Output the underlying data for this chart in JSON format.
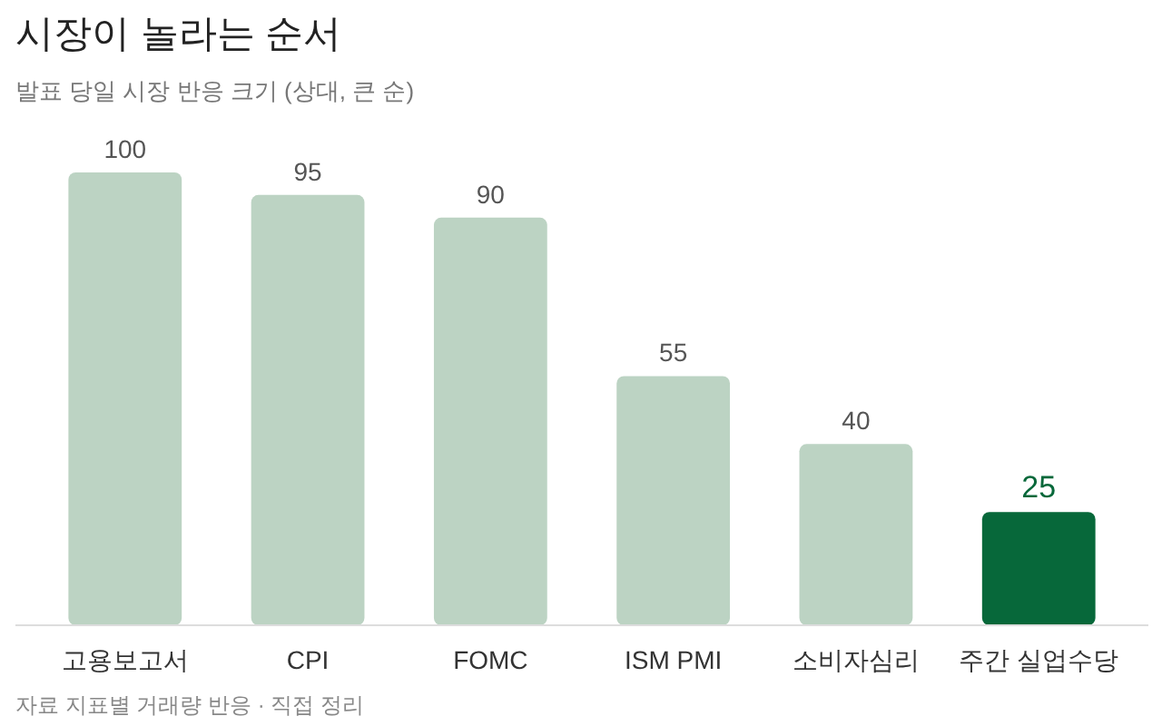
{
  "chart_data": {
    "type": "bar",
    "title": "시장이 놀라는 순서",
    "subtitle": "발표 당일 시장 반응 크기 (상대, 큰 순)",
    "categories": [
      "고용보고서",
      "CPI",
      "FOMC",
      "ISM PMI",
      "소비자심리",
      "주간 실업수당"
    ],
    "values": [
      100,
      95,
      90,
      55,
      40,
      25
    ],
    "colors": [
      "#bcd3c3",
      "#bcd3c3",
      "#bcd3c3",
      "#bcd3c3",
      "#bcd3c3",
      "#07683a"
    ],
    "data_labels": true,
    "annotations": [
      "자료 지표별 거래량 반응 · 직접 정리"
    ]
  }
}
